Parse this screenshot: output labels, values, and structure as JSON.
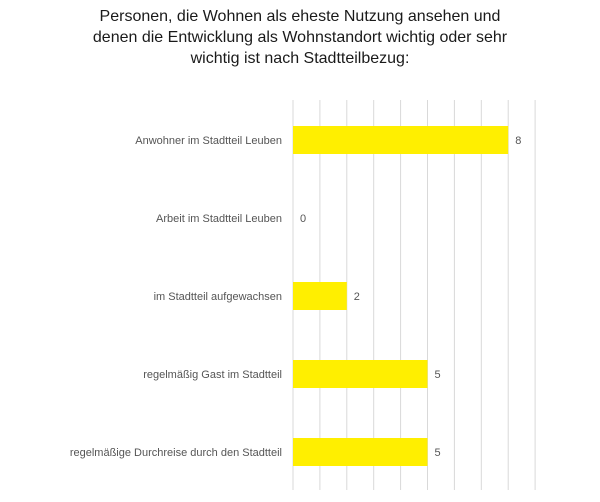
{
  "chart_data": {
    "type": "bar",
    "orientation": "horizontal",
    "title_lines": [
      "Personen, die Wohnen als eheste Nutzung ansehen und",
      "denen die Entwicklung als Wohnstandort wichtig oder sehr",
      "wichtig ist nach Stadtteilbezug:"
    ],
    "categories": [
      "Anwohner im Stadtteil Leuben",
      "Arbeit im Stadtteil Leuben",
      "im Stadtteil aufgewachsen",
      "regelmäßig Gast im Stadtteil",
      "regelmäßige Durchreise durch den Stadtteil"
    ],
    "values": [
      8,
      0,
      2,
      5,
      5
    ],
    "xlim": [
      0,
      9
    ],
    "grid": true,
    "bar_color": "#FFEF00",
    "legend": false
  }
}
